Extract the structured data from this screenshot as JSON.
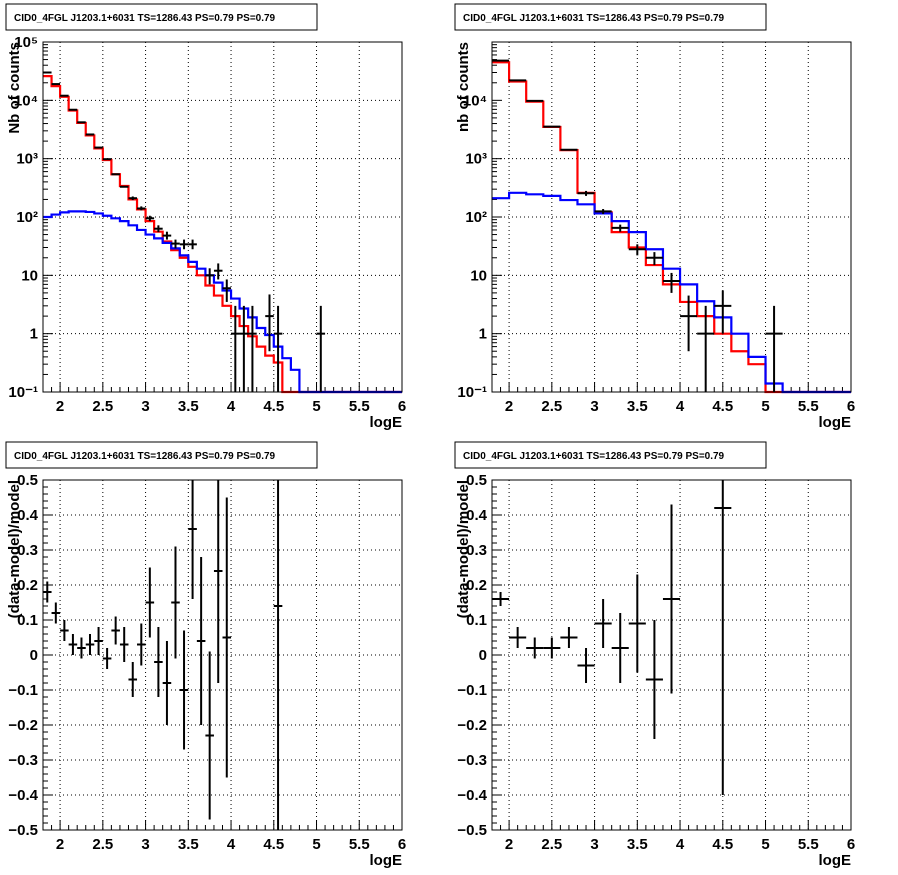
{
  "chart_data": [
    {
      "type": "histogram",
      "title": "CID0_4FGL J1203.1+6031 TS=1286.43 PS=0.79 PS=0.79",
      "xlabel": "logE",
      "ylabel": "Nb of counts",
      "xlim": [
        1.8,
        6.0
      ],
      "ylim": [
        0.1,
        100000
      ],
      "yscale": "log",
      "xticks": [
        "2",
        "2.5",
        "3",
        "3.5",
        "4",
        "4.5",
        "5",
        "5.5",
        "6"
      ],
      "yticks": [
        "10⁻¹",
        "1",
        "10",
        "10²",
        "10³",
        "10⁴",
        "10⁵"
      ],
      "grid": true,
      "bin_width": 0.1,
      "bin_start": 1.8,
      "series": [
        {
          "color": "#ff0000",
          "kind": "step",
          "values": [
            26000,
            17500,
            11500,
            6700,
            4100,
            2500,
            1500,
            950,
            540,
            340,
            200,
            135,
            85,
            56,
            38,
            27,
            20,
            14,
            10,
            6.7,
            4.5,
            3.0,
            2.0,
            1.35,
            0.9,
            0.6,
            0.42,
            0.32,
            0.1,
            0.1,
            0.1,
            0.1,
            0.1,
            0.1,
            0.1,
            0.1,
            0.1,
            0.1,
            0.1,
            0.1,
            0.1,
            0.1
          ]
        },
        {
          "color": "#0000ff",
          "kind": "step",
          "values": [
            100,
            110,
            120,
            125,
            125,
            122,
            115,
            105,
            95,
            85,
            72,
            60,
            50,
            43,
            36,
            29,
            22,
            17,
            13,
            10,
            7.5,
            5.5,
            4.0,
            2.7,
            1.9,
            1.25,
            0.95,
            0.6,
            0.38,
            0.24,
            0.1,
            0.1,
            0.1,
            0.1,
            0.1,
            0.1,
            0.1,
            0.1,
            0.1,
            0.1,
            0.1,
            0.1
          ]
        },
        {
          "color": "#000000",
          "kind": "points",
          "x": [
            1.85,
            1.95,
            2.05,
            2.15,
            2.25,
            2.35,
            2.45,
            2.55,
            2.65,
            2.75,
            2.85,
            2.95,
            3.05,
            3.15,
            3.25,
            3.35,
            3.45,
            3.55,
            3.75,
            3.85,
            3.95,
            4.05,
            4.15,
            4.25,
            4.45,
            4.55,
            5.05
          ],
          "values": [
            30000,
            19000,
            12000,
            6900,
            4200,
            2600,
            1550,
            980,
            540,
            330,
            210,
            140,
            95,
            63,
            48,
            35,
            34,
            34,
            10,
            12,
            6,
            1,
            1,
            1,
            2,
            1,
            1
          ],
          "err_low": [
            0,
            0,
            0,
            0,
            0,
            0,
            0,
            0,
            0,
            0,
            15,
            10,
            10,
            8,
            7,
            6,
            6,
            6,
            3,
            3.5,
            2.5,
            0.9,
            0.9,
            0.9,
            1.5,
            0.9,
            0.9
          ],
          "err_high": [
            0,
            0,
            0,
            0,
            0,
            0,
            0,
            0,
            0,
            0,
            15,
            12,
            10,
            9,
            8,
            6,
            7,
            7,
            3.2,
            4,
            2.5,
            2,
            2,
            2,
            2.7,
            2,
            2
          ]
        }
      ]
    },
    {
      "type": "histogram",
      "title": "CID0_4FGL J1203.1+6031 TS=1286.43 PS=0.79 PS=0.79",
      "xlabel": "logE",
      "ylabel": "nb of counts",
      "xlim": [
        1.8,
        6.0
      ],
      "ylim": [
        0.1,
        100000
      ],
      "yscale": "log",
      "xticks": [
        "2",
        "2.5",
        "3",
        "3.5",
        "4",
        "4.5",
        "5",
        "5.5",
        "6"
      ],
      "yticks": [
        "10⁻¹",
        "1",
        "10",
        "10²",
        "10³",
        "10⁴"
      ],
      "grid": true,
      "bin_width": 0.2,
      "bin_start": 1.8,
      "series": [
        {
          "color": "#ff0000",
          "kind": "step",
          "values": [
            45000,
            21000,
            9500,
            3500,
            1400,
            260,
            120,
            55,
            30,
            15,
            7,
            3.5,
            2,
            1,
            0.5,
            0.3,
            0.1,
            0.1,
            0.1,
            0.1,
            0.1
          ]
        },
        {
          "color": "#0000ff",
          "kind": "step",
          "values": [
            210,
            260,
            245,
            230,
            195,
            165,
            115,
            85,
            55,
            28,
            13,
            7,
            3.6,
            1.9,
            1,
            0.4,
            0.14,
            0.1,
            0.1,
            0.1,
            0.1
          ]
        },
        {
          "color": "#000000",
          "kind": "points",
          "x": [
            1.9,
            2.1,
            2.3,
            2.5,
            2.7,
            2.9,
            3.1,
            3.3,
            3.5,
            3.7,
            3.9,
            4.1,
            4.3,
            4.5,
            5.1
          ],
          "values": [
            48000,
            22000,
            9800,
            3550,
            1420,
            255,
            125,
            65,
            28,
            20,
            8,
            2,
            1,
            3,
            1
          ],
          "err_low": [
            0,
            0,
            0,
            0,
            0,
            25,
            12,
            9,
            6,
            5,
            3,
            1.5,
            0.9,
            2,
            0.9
          ],
          "err_high": [
            0,
            0,
            0,
            0,
            0,
            25,
            12,
            9,
            6,
            5,
            3,
            2.5,
            2,
            2.5,
            2
          ]
        }
      ]
    },
    {
      "type": "scatter",
      "title": "CID0_4FGL J1203.1+6031 TS=1286.43 PS=0.79 PS=0.79",
      "xlabel": "logE",
      "ylabel": "(data-model)/model",
      "xlim": [
        1.8,
        6.0
      ],
      "ylim": [
        -0.5,
        0.5
      ],
      "yscale": "linear",
      "xticks": [
        "2",
        "2.5",
        "3",
        "3.5",
        "4",
        "4.5",
        "5",
        "5.5",
        "6"
      ],
      "yticks": [
        "−0.5",
        "−0.4",
        "−0.3",
        "−0.2",
        "−0.1",
        "0",
        "0.1",
        "0.2",
        "0.3",
        "0.4",
        "0.5"
      ],
      "grid": true,
      "bin_width": 0.1,
      "series": [
        {
          "color": "#000000",
          "kind": "points",
          "x": [
            1.85,
            1.95,
            2.05,
            2.15,
            2.25,
            2.35,
            2.45,
            2.55,
            2.65,
            2.75,
            2.85,
            2.95,
            3.05,
            3.15,
            3.25,
            3.35,
            3.45,
            3.55,
            3.65,
            3.75,
            3.85,
            3.95,
            4.55
          ],
          "values": [
            0.18,
            0.12,
            0.07,
            0.03,
            0.02,
            0.03,
            0.04,
            -0.01,
            0.07,
            0.03,
            -0.07,
            0.03,
            0.15,
            -0.02,
            -0.08,
            0.15,
            -0.1,
            0.36,
            0.04,
            -0.23,
            0.24,
            0.05,
            0.14
          ],
          "err": [
            0.03,
            0.03,
            0.03,
            0.03,
            0.03,
            0.03,
            0.04,
            0.03,
            0.04,
            0.05,
            0.05,
            0.06,
            0.1,
            0.1,
            0.12,
            0.16,
            0.17,
            0.2,
            0.24,
            0.24,
            0.32,
            0.4,
            0.9
          ]
        }
      ]
    },
    {
      "type": "scatter",
      "title": "CID0_4FGL J1203.1+6031 TS=1286.43 PS=0.79 PS=0.79",
      "xlabel": "logE",
      "ylabel": "(data-model)/model",
      "xlim": [
        1.8,
        6.0
      ],
      "ylim": [
        -0.5,
        0.5
      ],
      "yscale": "linear",
      "xticks": [
        "2",
        "2.5",
        "3",
        "3.5",
        "4",
        "4.5",
        "5",
        "5.5",
        "6"
      ],
      "yticks": [
        "−0.5",
        "−0.4",
        "−0.3",
        "−0.2",
        "−0.1",
        "0",
        "0.1",
        "0.2",
        "0.3",
        "0.4",
        "0.5"
      ],
      "grid": true,
      "bin_width": 0.2,
      "series": [
        {
          "color": "#000000",
          "kind": "points",
          "x": [
            1.9,
            2.1,
            2.3,
            2.5,
            2.7,
            2.9,
            3.1,
            3.3,
            3.5,
            3.7,
            3.9,
            4.5
          ],
          "values": [
            0.16,
            0.05,
            0.02,
            0.02,
            0.05,
            -0.03,
            0.09,
            0.02,
            0.09,
            -0.07,
            0.16,
            0.42
          ],
          "err": [
            0.02,
            0.03,
            0.03,
            0.03,
            0.03,
            0.05,
            0.07,
            0.1,
            0.14,
            0.17,
            0.27,
            0.82
          ]
        }
      ]
    }
  ]
}
